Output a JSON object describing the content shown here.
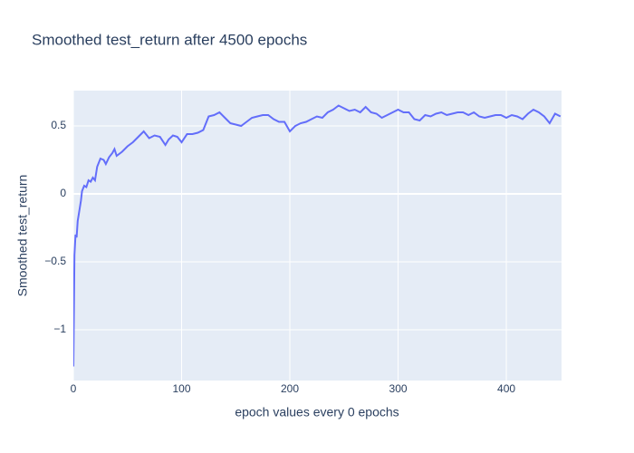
{
  "chart_data": {
    "type": "line",
    "title": "Smoothed test_return after 4500 epochs",
    "x_label": "epoch values every 0 epochs",
    "y_label": "Smoothed test_return",
    "color": "#636efa",
    "grid": true,
    "xlim": [
      0,
      451
    ],
    "ylim": [
      -1.373,
      0.76
    ],
    "xticks": [
      0,
      100,
      200,
      300,
      400
    ],
    "yticks": [
      {
        "value": -1,
        "label": "−1"
      },
      {
        "value": -0.5,
        "label": "−0.5"
      },
      0,
      0.5
    ],
    "x": [
      0,
      1,
      2,
      3,
      4,
      5,
      7,
      8,
      10,
      12,
      14,
      16,
      18,
      20,
      22,
      25,
      28,
      30,
      33,
      36,
      38,
      40,
      45,
      50,
      55,
      60,
      65,
      70,
      75,
      80,
      85,
      88,
      92,
      96,
      100,
      105,
      110,
      115,
      120,
      125,
      130,
      135,
      140,
      145,
      150,
      155,
      160,
      165,
      170,
      175,
      180,
      185,
      190,
      195,
      200,
      205,
      210,
      215,
      220,
      225,
      230,
      235,
      240,
      245,
      250,
      255,
      260,
      265,
      270,
      275,
      280,
      285,
      290,
      295,
      300,
      305,
      310,
      315,
      320,
      325,
      330,
      335,
      340,
      345,
      350,
      355,
      360,
      365,
      370,
      375,
      380,
      385,
      390,
      395,
      400,
      405,
      410,
      415,
      420,
      425,
      430,
      435,
      440,
      445,
      450
    ],
    "values": [
      -1.27,
      -0.45,
      -0.3,
      -0.32,
      -0.2,
      -0.15,
      -0.05,
      0.02,
      0.06,
      0.05,
      0.1,
      0.09,
      0.12,
      0.1,
      0.2,
      0.26,
      0.25,
      0.22,
      0.27,
      0.3,
      0.33,
      0.28,
      0.31,
      0.35,
      0.38,
      0.42,
      0.46,
      0.41,
      0.43,
      0.42,
      0.36,
      0.4,
      0.43,
      0.42,
      0.38,
      0.44,
      0.44,
      0.45,
      0.47,
      0.57,
      0.58,
      0.6,
      0.56,
      0.52,
      0.51,
      0.5,
      0.53,
      0.56,
      0.57,
      0.58,
      0.58,
      0.55,
      0.53,
      0.53,
      0.46,
      0.5,
      0.52,
      0.53,
      0.55,
      0.57,
      0.56,
      0.6,
      0.62,
      0.65,
      0.63,
      0.61,
      0.62,
      0.6,
      0.64,
      0.6,
      0.59,
      0.56,
      0.58,
      0.6,
      0.62,
      0.6,
      0.6,
      0.55,
      0.54,
      0.58,
      0.57,
      0.59,
      0.6,
      0.58,
      0.59,
      0.6,
      0.6,
      0.58,
      0.6,
      0.57,
      0.56,
      0.57,
      0.58,
      0.58,
      0.56,
      0.58,
      0.57,
      0.55,
      0.59,
      0.62,
      0.6,
      0.57,
      0.52,
      0.59,
      0.57
    ]
  }
}
